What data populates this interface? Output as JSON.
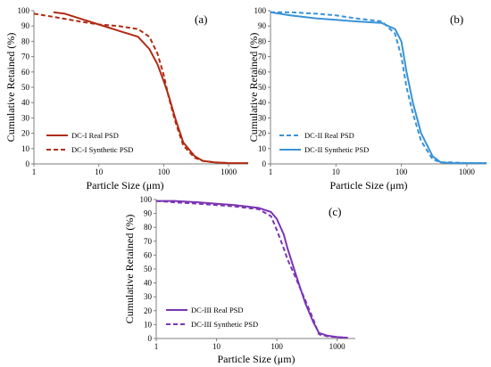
{
  "figure": {
    "panels": [
      {
        "label": "(a)",
        "xlabel": "Particle Size (μm)",
        "ylabel": "Cumulative Retained (%)"
      },
      {
        "label": "(b)",
        "xlabel": "Particle Size (μm)",
        "ylabel": "Cumulative Retained (%)"
      },
      {
        "label": "(c)",
        "xlabel": "Particle Size (μm)",
        "ylabel": "Cumulative Retained (%)"
      }
    ]
  },
  "chart_data": [
    {
      "type": "line",
      "title": "(a)",
      "xlabel": "Particle Size (μm)",
      "ylabel": "Cumulative Retained (%)",
      "xscale": "log",
      "xlim": [
        1,
        2000
      ],
      "ylim": [
        0,
        100
      ],
      "xticks": [
        1,
        10,
        100,
        1000
      ],
      "yticks": [
        0,
        10,
        20,
        30,
        40,
        50,
        60,
        70,
        80,
        90,
        100
      ],
      "grid": false,
      "legend": "bottom-left",
      "series": [
        {
          "name": "DC-I Real PSD",
          "style": "solid",
          "color": "#b22b13",
          "x": [
            2,
            3,
            5,
            10,
            20,
            40,
            60,
            80,
            100,
            120,
            150,
            200,
            300,
            400,
            600,
            1000,
            2000
          ],
          "y": [
            99,
            98,
            95,
            91,
            87,
            83,
            75,
            65,
            54,
            44,
            30,
            14,
            5,
            2,
            1,
            0.5,
            0.5
          ]
        },
        {
          "name": "DC-I Synthetic PSD",
          "style": "dashed",
          "color": "#b22b13",
          "x": [
            1,
            2,
            5,
            10,
            20,
            40,
            60,
            80,
            100,
            120,
            150,
            200,
            300,
            400,
            600,
            1000
          ],
          "y": [
            98,
            96,
            93,
            91,
            90,
            88,
            83,
            72,
            58,
            43,
            28,
            12,
            4,
            2,
            1,
            0.5
          ]
        }
      ]
    },
    {
      "type": "line",
      "title": "(b)",
      "xlabel": "Particle Size (μm)",
      "ylabel": "Cumulative Retained (%)",
      "xscale": "log",
      "xlim": [
        1,
        2000
      ],
      "ylim": [
        0,
        100
      ],
      "xticks": [
        1,
        10,
        100,
        1000
      ],
      "yticks": [
        0,
        10,
        20,
        30,
        40,
        50,
        60,
        70,
        80,
        90,
        100
      ],
      "grid": false,
      "legend": "bottom-left",
      "series": [
        {
          "name": "DC-II Real PSD",
          "style": "dashed",
          "color": "#3a93d6",
          "x": [
            1,
            2,
            5,
            10,
            20,
            50,
            80,
            100,
            120,
            150,
            200,
            300,
            400,
            600,
            1000,
            2000
          ],
          "y": [
            99,
            99,
            98,
            97,
            95,
            93,
            85,
            70,
            50,
            33,
            15,
            3,
            1,
            1,
            0.5,
            0.5
          ]
        },
        {
          "name": "DC-II Synthetic PSD",
          "style": "solid",
          "color": "#3a93d6",
          "x": [
            1,
            2,
            5,
            10,
            20,
            50,
            80,
            100,
            120,
            150,
            200,
            300,
            400,
            600,
            1000,
            2000
          ],
          "y": [
            99,
            97,
            95,
            94,
            93,
            92,
            88,
            80,
            60,
            40,
            20,
            5,
            1,
            0.5,
            0.5,
            0.5
          ]
        }
      ]
    },
    {
      "type": "line",
      "title": "(c)",
      "xlabel": "Particle Size (μm)",
      "ylabel": "Cumulative Retained (%)",
      "xscale": "log",
      "xlim": [
        1,
        2000
      ],
      "ylim": [
        0,
        100
      ],
      "xticks": [
        1,
        10,
        100,
        1000
      ],
      "yticks": [
        0,
        10,
        20,
        30,
        40,
        50,
        60,
        70,
        80,
        90,
        100
      ],
      "grid": false,
      "legend": "bottom-left",
      "series": [
        {
          "name": "DC-III Real PSD",
          "style": "solid",
          "color": "#7b35b5",
          "x": [
            1,
            2,
            5,
            10,
            20,
            50,
            80,
            100,
            130,
            150,
            200,
            250,
            300,
            400,
            500,
            700,
            1000,
            1500
          ],
          "y": [
            99,
            99,
            98,
            97,
            96,
            94,
            91,
            86,
            75,
            65,
            48,
            35,
            25,
            12,
            4,
            2,
            1,
            0.5
          ]
        },
        {
          "name": "DC-III Synthetic PSD",
          "style": "dashed",
          "color": "#7b35b5",
          "x": [
            1,
            2,
            5,
            10,
            20,
            50,
            80,
            100,
            130,
            150,
            200,
            250,
            300,
            400,
            500,
            700,
            1000,
            1500
          ],
          "y": [
            99,
            98,
            97,
            96,
            95,
            93,
            88,
            78,
            65,
            57,
            45,
            35,
            27,
            14,
            3,
            1.5,
            1,
            0.5
          ]
        }
      ]
    }
  ]
}
